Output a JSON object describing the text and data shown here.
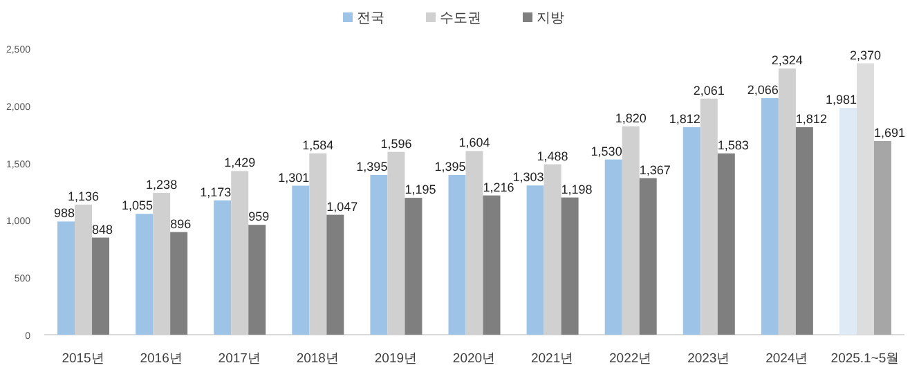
{
  "chart_data": {
    "type": "bar",
    "categories": [
      "2015년",
      "2016년",
      "2017년",
      "2018년",
      "2019년",
      "2020년",
      "2021년",
      "2022년",
      "2023년",
      "2024년",
      "2025.1~5월"
    ],
    "series": [
      {
        "name": "전국",
        "color": "#9dc3e6",
        "colors": [
          "#9dc3e6",
          "#9dc3e6",
          "#9dc3e6",
          "#9dc3e6",
          "#9dc3e6",
          "#9dc3e6",
          "#9dc3e6",
          "#9dc3e6",
          "#9dc3e6",
          "#9dc3e6",
          "#deebf7"
        ],
        "values": [
          988,
          1055,
          1173,
          1301,
          1395,
          1395,
          1303,
          1530,
          1812,
          2066,
          1981
        ],
        "value_labels": [
          "988",
          "1,055",
          "1,173",
          "1,301",
          "1,395",
          "1,395",
          "1,303",
          "1,530",
          "1,812",
          "2,066",
          "1,981"
        ]
      },
      {
        "name": "수도권",
        "color": "#d0d0d0",
        "colors": [
          "#d0d0d0",
          "#d0d0d0",
          "#d0d0d0",
          "#d0d0d0",
          "#d0d0d0",
          "#d0d0d0",
          "#d0d0d0",
          "#d0d0d0",
          "#d0d0d0",
          "#d0d0d0",
          "#dddddd"
        ],
        "values": [
          1136,
          1238,
          1429,
          1584,
          1596,
          1604,
          1488,
          1820,
          2061,
          2324,
          2370
        ],
        "value_labels": [
          "1,136",
          "1,238",
          "1,429",
          "1,584",
          "1,596",
          "1,604",
          "1,488",
          "1,820",
          "2,061",
          "2,324",
          "2,370"
        ]
      },
      {
        "name": "지방",
        "color": "#7f7f7f",
        "colors": [
          "#7f7f7f",
          "#7f7f7f",
          "#7f7f7f",
          "#7f7f7f",
          "#7f7f7f",
          "#7f7f7f",
          "#7f7f7f",
          "#7f7f7f",
          "#7f7f7f",
          "#7f7f7f",
          "#a6a6a6"
        ],
        "values": [
          848,
          896,
          959,
          1047,
          1195,
          1216,
          1198,
          1367,
          1583,
          1812,
          1691
        ],
        "value_labels": [
          "848",
          "896",
          "959",
          "1,047",
          "1,195",
          "1,216",
          "1,198",
          "1,367",
          "1,583",
          "1,812",
          "1,691"
        ]
      }
    ],
    "ylim": [
      0,
      2500
    ],
    "yticks": [
      0,
      500,
      {
        "value": 1000,
        "label": "1,000"
      },
      {
        "value": 1500,
        "label": "1,500"
      },
      {
        "value": 2000,
        "label": "2,000"
      },
      {
        "value": 2500,
        "label": "2,500"
      }
    ],
    "legend": "top",
    "grid": false
  }
}
